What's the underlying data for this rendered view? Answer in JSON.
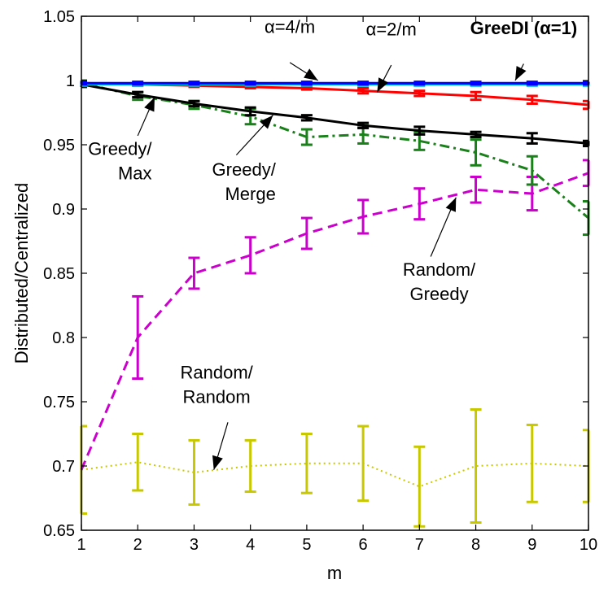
{
  "chart_data": {
    "type": "line",
    "xlabel": "m",
    "ylabel": "Distributed/Centralized",
    "xlim": [
      1,
      10
    ],
    "ylim": [
      0.65,
      1.05
    ],
    "x_ticks": [
      1,
      2,
      3,
      4,
      5,
      6,
      7,
      8,
      9,
      10
    ],
    "y_ticks": [
      "0.65",
      "0.7",
      "0.75",
      "0.8",
      "0.85",
      "0.9",
      "0.95",
      "1",
      "1.05"
    ],
    "grid": false,
    "legend": "none",
    "x": [
      1,
      2,
      3,
      4,
      5,
      6,
      7,
      8,
      9,
      10
    ],
    "series": [
      {
        "key": "random_random",
        "color": "#c8c800",
        "dash": "2,4",
        "width": 2,
        "values": [
          0.697,
          0.703,
          0.695,
          0.7,
          0.702,
          0.702,
          0.684,
          0.7,
          0.702,
          0.7
        ],
        "errors": [
          0.034,
          0.022,
          0.025,
          0.02,
          0.023,
          0.029,
          0.031,
          0.044,
          0.03,
          0.028
        ]
      },
      {
        "key": "random_greedy",
        "color": "#cc00cc",
        "dash": "12,7",
        "width": 3,
        "values": [
          0.697,
          0.8,
          0.85,
          0.864,
          0.881,
          0.894,
          0.904,
          0.915,
          0.912,
          0.928
        ],
        "errors": [
          0.0,
          0.032,
          0.012,
          0.014,
          0.012,
          0.013,
          0.012,
          0.01,
          0.013,
          0.01
        ]
      },
      {
        "key": "greedy_merge",
        "color": "#1a801a",
        "dash": "12,5,3,5",
        "width": 3,
        "values": [
          0.998,
          0.988,
          0.981,
          0.972,
          0.956,
          0.958,
          0.953,
          0.944,
          0.93,
          0.893
        ],
        "errors": [
          0.002,
          0.003,
          0.003,
          0.006,
          0.006,
          0.007,
          0.007,
          0.01,
          0.011,
          0.013
        ]
      },
      {
        "key": "greedy_max",
        "color": "#000000",
        "dash": "",
        "width": 3,
        "values": [
          0.997,
          0.989,
          0.982,
          0.976,
          0.971,
          0.965,
          0.961,
          0.958,
          0.955,
          0.951
        ],
        "errors": [
          0.002,
          0.002,
          0.002,
          0.003,
          0.002,
          0.002,
          0.003,
          0.002,
          0.004,
          0.002
        ]
      },
      {
        "key": "alpha_2_m",
        "color": "#ff0000",
        "dash": "",
        "width": 3,
        "values": [
          0.998,
          0.997,
          0.996,
          0.995,
          0.994,
          0.992,
          0.99,
          0.988,
          0.985,
          0.981
        ],
        "errors": [
          0.001,
          0.001,
          0.001,
          0.001,
          0.001,
          0.002,
          0.002,
          0.003,
          0.003,
          0.003
        ]
      },
      {
        "key": "greedi",
        "color": "#00bbcc",
        "dash": "",
        "width": 3,
        "values": [
          0.997,
          0.997,
          0.997,
          0.997,
          0.997,
          0.997,
          0.997,
          0.997,
          0.997,
          0.997
        ],
        "errors": [
          0.001,
          0.001,
          0.001,
          0.001,
          0.001,
          0.001,
          0.001,
          0.001,
          0.001,
          0.001
        ]
      },
      {
        "key": "alpha_4_m",
        "color": "#0000ff",
        "dash": "",
        "width": 3,
        "values": [
          0.998,
          0.998,
          0.998,
          0.998,
          0.998,
          0.998,
          0.998,
          0.998,
          0.998,
          0.998
        ],
        "errors": [
          0.001,
          0.001,
          0.001,
          0.001,
          0.001,
          0.001,
          0.001,
          0.001,
          0.001,
          0.001
        ]
      }
    ],
    "annotations": [
      {
        "key": "alpha_4_m",
        "lines": [
          "α=4/m"
        ],
        "bold": false,
        "x": 4.7,
        "y": 1.037,
        "anchor": "middle",
        "arrow_from": [
          4.7,
          1.014
        ],
        "arrow_to": [
          5.2,
          1.0
        ]
      },
      {
        "key": "alpha_2_m",
        "lines": [
          "α=2/m"
        ],
        "bold": false,
        "x": 6.5,
        "y": 1.035,
        "anchor": "middle",
        "arrow_from": [
          6.5,
          1.012
        ],
        "arrow_to": [
          6.25,
          0.991
        ]
      },
      {
        "key": "greedi",
        "lines": [
          "GreeDI (α=1)"
        ],
        "bold": true,
        "x": 8.85,
        "y": 1.036,
        "anchor": "middle",
        "arrow_from": [
          8.85,
          1.013
        ],
        "arrow_to": [
          8.7,
          1.0
        ]
      },
      {
        "key": "greedy_max",
        "lines": [
          "Greedy/",
          "Max"
        ],
        "bold": false,
        "x": 2.25,
        "y": 0.942,
        "anchor": "end",
        "arrow_from": [
          2.0,
          0.957
        ],
        "arrow_to": [
          2.3,
          0.987
        ]
      },
      {
        "key": "greedy_merge",
        "lines": [
          "Greedy/",
          "Merge"
        ],
        "bold": false,
        "x": 4.45,
        "y": 0.926,
        "anchor": "end",
        "arrow_from": [
          3.75,
          0.942
        ],
        "arrow_to": [
          4.4,
          0.973
        ]
      },
      {
        "key": "random_greedy",
        "lines": [
          "Random/",
          "Greedy"
        ],
        "bold": false,
        "x": 7.35,
        "y": 0.848,
        "anchor": "middle",
        "arrow_from": [
          7.2,
          0.863
        ],
        "arrow_to": [
          7.65,
          0.909
        ]
      },
      {
        "key": "random_random",
        "lines": [
          "Random/",
          "Random"
        ],
        "bold": false,
        "x": 3.4,
        "y": 0.768,
        "anchor": "middle",
        "arrow_from": [
          3.6,
          0.734
        ],
        "arrow_to": [
          3.35,
          0.697
        ]
      }
    ]
  }
}
